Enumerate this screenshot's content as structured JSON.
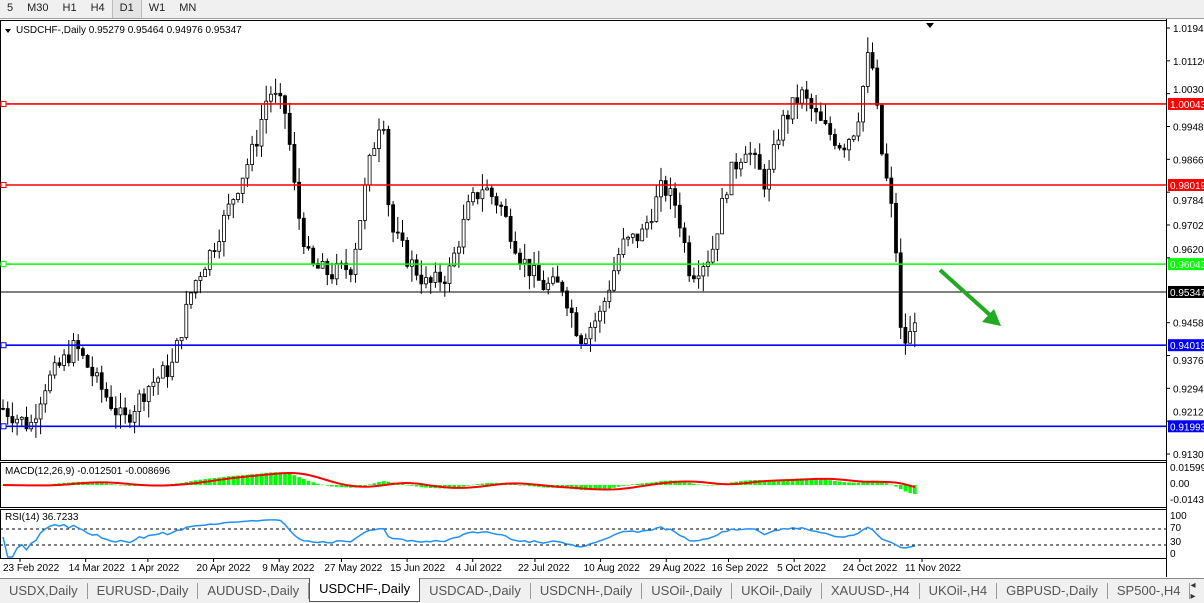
{
  "toolbar": {
    "timeframes": [
      "5",
      "M30",
      "H1",
      "H4",
      "D1",
      "W1",
      "MN"
    ],
    "active": "D1"
  },
  "chart": {
    "symbol_label": "USDCHF-,Daily",
    "ohlc": "0.95279 0.95464 0.94976 0.95347",
    "price_ticks": [
      "1.01940",
      "1.01120",
      "1.00300",
      "0.99480",
      "0.98660",
      "0.97840",
      "0.97020",
      "0.96200",
      "0.95347",
      "0.94580",
      "0.93760",
      "0.92940",
      "0.92120",
      "0.91300"
    ],
    "levels": [
      {
        "price": "1.00043",
        "color": "#ff0000"
      },
      {
        "price": "0.98019",
        "color": "#ff0000"
      },
      {
        "price": "0.96043",
        "color": "#00ff00"
      },
      {
        "price": "0.95347",
        "color": "#000000"
      },
      {
        "price": "0.94018",
        "color": "#0000ff"
      },
      {
        "price": "0.91993",
        "color": "#0000ff"
      }
    ],
    "arrow_color": "#22aa22",
    "bull_color": "#000000",
    "bear_color": "#000000"
  },
  "chart_data": {
    "type": "candlestick",
    "approx_close": [
      [
        "2022-02-17",
        0.925
      ],
      [
        "2022-02-26",
        0.92
      ],
      [
        "2022-03-02",
        0.93
      ],
      [
        "2022-03-11",
        0.94
      ],
      [
        "2022-03-18",
        0.93
      ],
      [
        "2022-03-25",
        0.921
      ],
      [
        "2022-04-01",
        0.93
      ],
      [
        "2022-04-08",
        0.935
      ],
      [
        "2022-04-14",
        0.955
      ],
      [
        "2022-04-20",
        0.965
      ],
      [
        "2022-04-27",
        0.98
      ],
      [
        "2022-05-02",
        0.99
      ],
      [
        "2022-05-06",
        1.004
      ],
      [
        "2022-05-11",
        0.998
      ],
      [
        "2022-05-14",
        0.975
      ],
      [
        "2022-05-18",
        0.96
      ],
      [
        "2022-05-24",
        0.958
      ],
      [
        "2022-05-30",
        0.96
      ],
      [
        "2022-06-04",
        0.985
      ],
      [
        "2022-06-08",
        1.0
      ],
      [
        "2022-06-10",
        0.97
      ],
      [
        "2022-06-15",
        0.962
      ],
      [
        "2022-06-21",
        0.955
      ],
      [
        "2022-06-27",
        0.958
      ],
      [
        "2022-07-03",
        0.975
      ],
      [
        "2022-07-07",
        0.98
      ],
      [
        "2022-07-12",
        0.975
      ],
      [
        "2022-07-18",
        0.962
      ],
      [
        "2022-07-24",
        0.955
      ],
      [
        "2022-07-30",
        0.955
      ],
      [
        "2022-08-04",
        0.942
      ],
      [
        "2022-08-10",
        0.948
      ],
      [
        "2022-08-16",
        0.965
      ],
      [
        "2022-08-22",
        0.968
      ],
      [
        "2022-08-28",
        0.98
      ],
      [
        "2022-09-01",
        0.975
      ],
      [
        "2022-09-05",
        0.958
      ],
      [
        "2022-09-11",
        0.963
      ],
      [
        "2022-09-16",
        0.982
      ],
      [
        "2022-09-21",
        0.99
      ],
      [
        "2022-09-27",
        0.98
      ],
      [
        "2022-10-01",
        0.995
      ],
      [
        "2022-10-07",
        1.003
      ],
      [
        "2022-10-13",
        0.995
      ],
      [
        "2022-10-19",
        0.99
      ],
      [
        "2022-10-23",
        0.995
      ],
      [
        "2022-10-27",
        1.015
      ],
      [
        "2022-10-30",
        0.99
      ],
      [
        "2022-11-02",
        0.975
      ],
      [
        "2022-11-04",
        0.96
      ],
      [
        "2022-11-05",
        0.94
      ],
      [
        "2022-11-08",
        0.943
      ],
      [
        "2022-11-10",
        0.9535
      ]
    ],
    "date_ticks": [
      "23 Feb 2022",
      "14 Mar 2022",
      "1 Apr 2022",
      "20 Apr 2022",
      "9 May 2022",
      "27 May 2022",
      "15 Jun 2022",
      "4 Jul 2022",
      "22 Jul 2022",
      "10 Aug 2022",
      "29 Aug 2022",
      "16 Sep 2022",
      "5 Oct 2022",
      "24 Oct 2022",
      "11 Nov 2022"
    ],
    "ylim": [
      0.913,
      1.0194
    ]
  },
  "macd": {
    "label": "MACD(12,26,9) -0.012501 -0.008696",
    "ticks": [
      "0.01599",
      "0.00",
      "-0.01432"
    ],
    "hist_color": "#00ff00",
    "signal_color": "#ff0000"
  },
  "rsi": {
    "label": "RSI(14) 36.7233",
    "ticks": [
      "100",
      "70",
      "30",
      "0"
    ],
    "line_color": "#1e90ff"
  },
  "tabs": [
    "USDX,Daily",
    "EURUSD-,Daily",
    "AUDUSD-,Daily",
    "USDCHF-,Daily",
    "USDCAD-,Daily",
    "USDCNH-,Daily",
    "USOil-,Daily",
    "UKOil-,Daily",
    "XAUUSD-,H4",
    "UKOil-,H4",
    "GBPUSD-,Daily",
    "SP500-,H4"
  ],
  "active_tab": "USDCHF-,Daily"
}
